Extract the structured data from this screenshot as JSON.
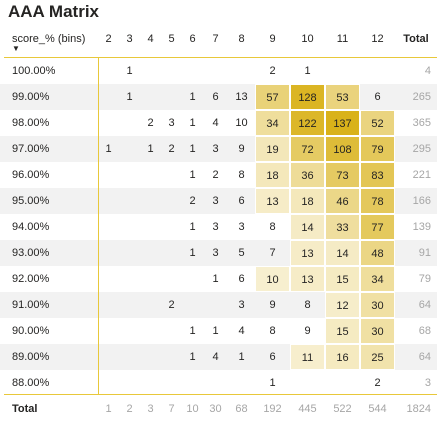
{
  "title": "AAA Matrix",
  "corner_label": "score_% (bins)",
  "columns": [
    "2",
    "3",
    "4",
    "5",
    "6",
    "7",
    "8",
    "9",
    "10",
    "11",
    "12"
  ],
  "total_label": "Total",
  "colors": {
    "max": "#d9b21a",
    "accent": "#e8c83a",
    "stripe": "#f2f2f2",
    "muted": "#a6a6a6"
  },
  "rows": [
    {
      "label": "100.00%",
      "cells": [
        "",
        "1",
        "",
        "",
        "",
        "",
        "",
        "2",
        "1",
        "",
        ""
      ],
      "total": "4"
    },
    {
      "label": "99.00%",
      "cells": [
        "",
        "1",
        "",
        "",
        "1",
        "6",
        "13",
        "57",
        "128",
        "53",
        "6"
      ],
      "total": "265"
    },
    {
      "label": "98.00%",
      "cells": [
        "",
        "",
        "2",
        "3",
        "1",
        "4",
        "10",
        "34",
        "122",
        "137",
        "52"
      ],
      "total": "365"
    },
    {
      "label": "97.00%",
      "cells": [
        "1",
        "",
        "1",
        "2",
        "1",
        "3",
        "9",
        "19",
        "72",
        "108",
        "79"
      ],
      "total": "295"
    },
    {
      "label": "96.00%",
      "cells": [
        "",
        "",
        "",
        "",
        "1",
        "2",
        "8",
        "18",
        "36",
        "73",
        "83"
      ],
      "total": "221"
    },
    {
      "label": "95.00%",
      "cells": [
        "",
        "",
        "",
        "",
        "2",
        "3",
        "6",
        "13",
        "18",
        "46",
        "78"
      ],
      "total": "166"
    },
    {
      "label": "94.00%",
      "cells": [
        "",
        "",
        "",
        "",
        "1",
        "3",
        "3",
        "8",
        "14",
        "33",
        "77"
      ],
      "total": "139"
    },
    {
      "label": "93.00%",
      "cells": [
        "",
        "",
        "",
        "",
        "1",
        "3",
        "5",
        "7",
        "13",
        "14",
        "48"
      ],
      "total": "91"
    },
    {
      "label": "92.00%",
      "cells": [
        "",
        "",
        "",
        "",
        "",
        "1",
        "6",
        "10",
        "13",
        "15",
        "34"
      ],
      "total": "79"
    },
    {
      "label": "91.00%",
      "cells": [
        "",
        "",
        "",
        "2",
        "",
        "",
        "3",
        "9",
        "8",
        "12",
        "30"
      ],
      "total": "64"
    },
    {
      "label": "90.00%",
      "cells": [
        "",
        "",
        "",
        "",
        "1",
        "1",
        "4",
        "8",
        "9",
        "15",
        "30"
      ],
      "total": "68"
    },
    {
      "label": "89.00%",
      "cells": [
        "",
        "",
        "",
        "",
        "1",
        "4",
        "1",
        "6",
        "11",
        "16",
        "25"
      ],
      "total": "64"
    },
    {
      "label": "88.00%",
      "cells": [
        "",
        "",
        "",
        "",
        "",
        "",
        "",
        "1",
        "",
        "",
        "2"
      ],
      "total": "3"
    }
  ],
  "totals_row": [
    "1",
    "2",
    "3",
    "7",
    "10",
    "30",
    "68",
    "192",
    "445",
    "522",
    "544"
  ],
  "grand_total": "1824"
}
